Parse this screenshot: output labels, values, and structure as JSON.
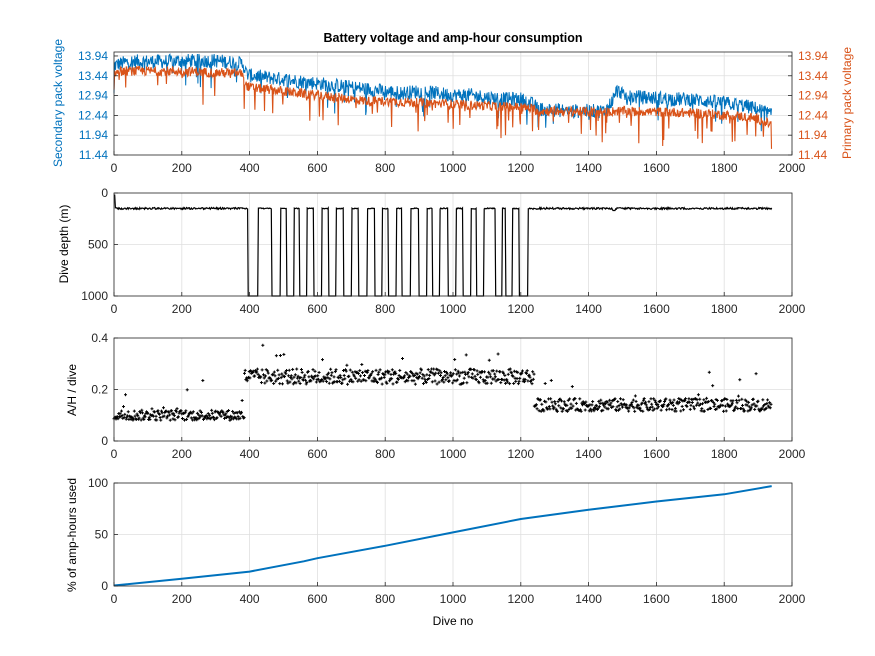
{
  "figure": {
    "title": "Battery voltage and amp-hour consumption",
    "xlabel": "Dive no"
  },
  "colors": {
    "secondary": "#0072BD",
    "primary": "#D95319",
    "black": "#000000",
    "grid": "#dfdfdf"
  },
  "chart_data": [
    {
      "id": "voltage",
      "type": "line",
      "title": "Battery voltage and amp-hour consumption",
      "xlabel": "",
      "xlim": [
        0,
        2000
      ],
      "xticks": [
        0,
        200,
        400,
        600,
        800,
        1000,
        1200,
        1400,
        1600,
        1800,
        2000
      ],
      "ylabel": "Secondary pack voltage",
      "ylim": [
        11.44,
        14.04
      ],
      "yticks": [
        11.44,
        11.94,
        12.44,
        12.94,
        13.44,
        13.94
      ],
      "ytick_labels": [
        "11.44",
        "11.94",
        "12.44",
        "12.94",
        "13.44",
        "13.94"
      ],
      "y2label": "Primary pack voltage",
      "y2ticks": [
        11.44,
        11.94,
        12.44,
        12.94,
        13.44,
        13.94
      ],
      "y2tick_labels": [
        "11.44",
        "11.94",
        "12.44",
        "12.94",
        "13.44",
        "13.94"
      ],
      "grid": true,
      "series": [
        {
          "axis": "left",
          "color": "#0072BD",
          "x": [
            0,
            1,
            20,
            50,
            100,
            150,
            200,
            250,
            300,
            380,
            390,
            400,
            450,
            500,
            550,
            600,
            650,
            700,
            750,
            800,
            850,
            900,
            950,
            1000,
            1050,
            1100,
            1150,
            1200,
            1240,
            1250,
            1300,
            1350,
            1400,
            1450,
            1480,
            1500,
            1550,
            1600,
            1650,
            1700,
            1750,
            1800,
            1850,
            1900,
            1940
          ],
          "y": [
            12.94,
            13.7,
            13.75,
            13.8,
            13.8,
            13.8,
            13.82,
            13.82,
            13.82,
            13.75,
            13.5,
            13.45,
            13.4,
            13.35,
            13.3,
            13.25,
            13.2,
            13.15,
            13.1,
            13.05,
            13.0,
            13.05,
            13.0,
            12.95,
            12.95,
            12.9,
            12.85,
            12.85,
            12.7,
            12.6,
            12.58,
            12.55,
            12.55,
            12.55,
            12.95,
            12.92,
            12.9,
            12.88,
            12.85,
            12.85,
            12.8,
            12.75,
            12.7,
            12.6,
            12.45
          ],
          "noise": 0.18
        },
        {
          "axis": "right",
          "color": "#D95319",
          "x": [
            0,
            1,
            20,
            50,
            100,
            150,
            200,
            250,
            300,
            380,
            390,
            400,
            450,
            500,
            550,
            600,
            650,
            700,
            750,
            800,
            850,
            900,
            950,
            1000,
            1050,
            1100,
            1150,
            1200,
            1240,
            1250,
            1300,
            1350,
            1400,
            1450,
            1480,
            1500,
            1550,
            1600,
            1650,
            1700,
            1750,
            1800,
            1850,
            1900,
            1940
          ],
          "y": [
            13.2,
            13.5,
            13.55,
            13.56,
            13.56,
            13.56,
            13.55,
            13.54,
            13.52,
            13.5,
            13.2,
            13.15,
            13.1,
            13.05,
            13.0,
            12.95,
            12.9,
            12.85,
            12.8,
            12.8,
            12.78,
            12.76,
            12.74,
            12.72,
            12.7,
            12.68,
            12.66,
            12.65,
            12.6,
            12.55,
            12.55,
            12.54,
            12.53,
            12.52,
            12.55,
            12.55,
            12.54,
            12.53,
            12.52,
            12.5,
            12.48,
            12.45,
            12.42,
            12.35,
            12.2
          ],
          "noise": 0.12
        }
      ]
    },
    {
      "id": "depth",
      "type": "line",
      "xlim": [
        0,
        2000
      ],
      "xticks": [
        0,
        200,
        400,
        600,
        800,
        1000,
        1200,
        1400,
        1600,
        1800,
        2000
      ],
      "ylabel": "Dive depth (m)",
      "ylim": [
        0,
        1000
      ],
      "reverse_y": true,
      "yticks": [
        0,
        500,
        1000
      ],
      "ytick_labels": [
        "0",
        "500",
        "1000"
      ],
      "grid": true,
      "series": [
        {
          "color": "#000000",
          "shallow_depth": 150,
          "deep_depth": 1000,
          "deep_segments": [
            [
              395,
              425
            ],
            [
              465,
              490
            ],
            [
              510,
              530
            ],
            [
              548,
              568
            ],
            [
              590,
              612
            ],
            [
              633,
              655
            ],
            [
              678,
              700
            ],
            [
              722,
              746
            ],
            [
              770,
              790
            ],
            [
              810,
              832
            ],
            [
              850,
              875
            ],
            [
              900,
              922
            ],
            [
              940,
              960
            ],
            [
              985,
              1008
            ],
            [
              1030,
              1052
            ],
            [
              1070,
              1090
            ],
            [
              1125,
              1145
            ],
            [
              1155,
              1175
            ],
            [
              1195,
              1220
            ]
          ],
          "transition_start": 385,
          "transition_end": 1235,
          "end": 1940
        }
      ]
    },
    {
      "id": "ah_per_dive",
      "type": "scatter",
      "xlim": [
        0,
        2000
      ],
      "xticks": [
        0,
        200,
        400,
        600,
        800,
        1000,
        1200,
        1400,
        1600,
        1800,
        2000
      ],
      "ylabel": "A/H / dive",
      "ylim": [
        0,
        0.4
      ],
      "yticks": [
        0,
        0.2,
        0.4
      ],
      "ytick_labels": [
        "0",
        "0.2",
        "0.4"
      ],
      "grid": true,
      "series": [
        {
          "color": "#000000",
          "segments": [
            {
              "from": 0,
              "to": 385,
              "level": 0.1,
              "spread": 0.02
            },
            {
              "from": 385,
              "to": 1240,
              "level": 0.25,
              "spread": 0.03
            },
            {
              "from": 1240,
              "to": 1940,
              "level": 0.14,
              "spread": 0.025
            }
          ]
        }
      ]
    },
    {
      "id": "percent_used",
      "type": "line",
      "xlim": [
        0,
        2000
      ],
      "xticks": [
        0,
        200,
        400,
        600,
        800,
        1000,
        1200,
        1400,
        1600,
        1800,
        2000
      ],
      "ylabel": "% of amp-hours used",
      "ylim": [
        0,
        100
      ],
      "yticks": [
        0,
        50,
        100
      ],
      "ytick_labels": [
        "0",
        "50",
        "100"
      ],
      "xlabel": "Dive no",
      "grid": true,
      "series": [
        {
          "color": "#0072BD",
          "x": [
            0,
            200,
            400,
            560,
            600,
            800,
            1000,
            1200,
            1400,
            1600,
            1800,
            1940
          ],
          "y": [
            0.5,
            7,
            14,
            24,
            27,
            39,
            52,
            65,
            74,
            82,
            89,
            97
          ]
        }
      ]
    }
  ]
}
